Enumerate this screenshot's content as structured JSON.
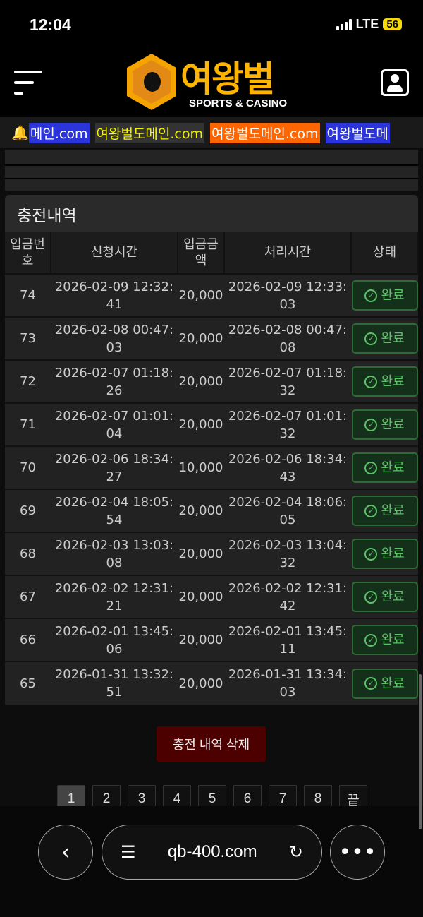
{
  "status_bar": {
    "time": "12:04",
    "network": "LTE",
    "battery": "56"
  },
  "header": {
    "logo_text": "여왕벌",
    "logo_sub": "SPORTS & CASINO",
    "menu_icon": "hamburger-icon",
    "profile_icon": "user-scan-icon"
  },
  "ticker": {
    "items": [
      "메인.com",
      "여왕벌도메인.com",
      "여왕벌도메인.com",
      "여왕벌도메"
    ],
    "colors": [
      "#2b35d9",
      "#333333",
      "#ff6600",
      "#2b35d9"
    ]
  },
  "panel": {
    "title": "충전내역",
    "columns": [
      "입금번호",
      "신청시간",
      "입금금액",
      "처리시간",
      "상태"
    ],
    "rows": [
      {
        "id": "74",
        "requested": "2026-02-09 12:32:41",
        "amount": "20,000",
        "processed": "2026-02-09 12:33:03",
        "status": "완료"
      },
      {
        "id": "73",
        "requested": "2026-02-08 00:47:03",
        "amount": "20,000",
        "processed": "2026-02-08 00:47:08",
        "status": "완료"
      },
      {
        "id": "72",
        "requested": "2026-02-07 01:18:26",
        "amount": "20,000",
        "processed": "2026-02-07 01:18:32",
        "status": "완료"
      },
      {
        "id": "71",
        "requested": "2026-02-07 01:01:04",
        "amount": "20,000",
        "processed": "2026-02-07 01:01:32",
        "status": "완료"
      },
      {
        "id": "70",
        "requested": "2026-02-06 18:34:27",
        "amount": "10,000",
        "processed": "2026-02-06 18:34:43",
        "status": "완료"
      },
      {
        "id": "69",
        "requested": "2026-02-04 18:05:54",
        "amount": "20,000",
        "processed": "2026-02-04 18:06:05",
        "status": "완료"
      },
      {
        "id": "68",
        "requested": "2026-02-03 13:03:08",
        "amount": "20,000",
        "processed": "2026-02-03 13:04:32",
        "status": "완료"
      },
      {
        "id": "67",
        "requested": "2026-02-02 12:31:21",
        "amount": "20,000",
        "processed": "2026-02-02 12:31:42",
        "status": "완료"
      },
      {
        "id": "66",
        "requested": "2026-02-01 13:45:06",
        "amount": "20,000",
        "processed": "2026-02-01 13:45:11",
        "status": "완료"
      },
      {
        "id": "65",
        "requested": "2026-01-31 13:32:51",
        "amount": "20,000",
        "processed": "2026-01-31 13:34:03",
        "status": "완료"
      }
    ]
  },
  "delete_button": "충전 내역 삭제",
  "pagination": {
    "pages": [
      "1",
      "2",
      "3",
      "4",
      "5",
      "6",
      "7",
      "8"
    ],
    "last": "끝",
    "current": "1"
  },
  "browser": {
    "url": "qb-400.com"
  }
}
